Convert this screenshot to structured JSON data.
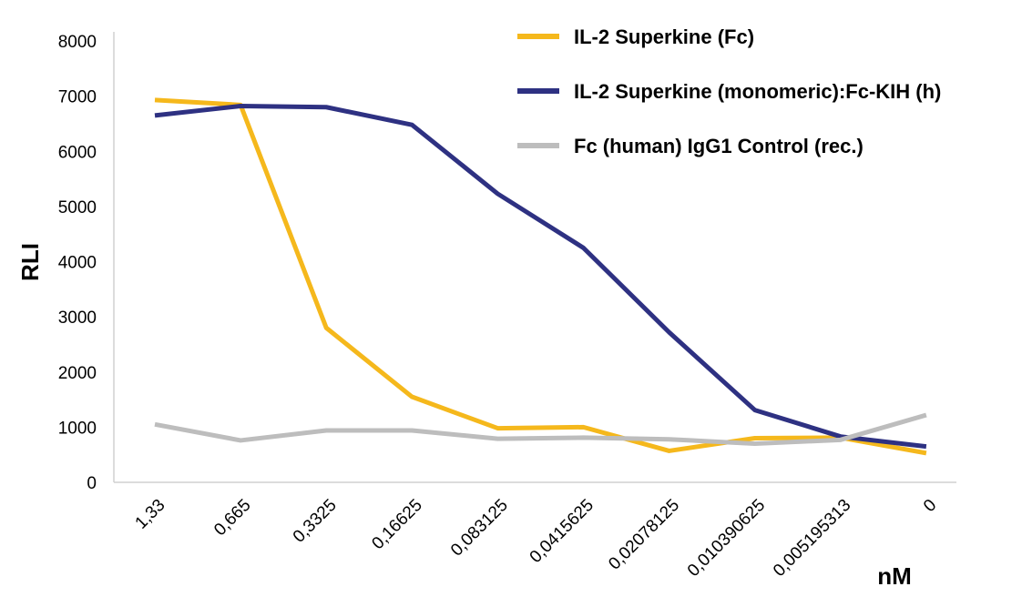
{
  "chart_data": {
    "type": "line",
    "categories": [
      "1,33",
      "0,665",
      "0,3325",
      "0,16625",
      "0,083125",
      "0,0415625",
      "0,02078125",
      "0,010390625",
      "0,005195313",
      "0"
    ],
    "series": [
      {
        "name": "IL-2 Superkine (Fc)",
        "color": "#F5B81C",
        "values": [
          6930,
          6840,
          2800,
          1550,
          980,
          1000,
          570,
          800,
          810,
          530
        ]
      },
      {
        "name": "IL-2 Superkine (monomeric):Fc-KIH (h)",
        "color": "#2E3182",
        "values": [
          6650,
          6820,
          6800,
          6480,
          5230,
          4250,
          2720,
          1310,
          830,
          650
        ]
      },
      {
        "name": "Fc (human) IgG1 Control (rec.)",
        "color": "#BDBDBD",
        "values": [
          1050,
          760,
          940,
          940,
          790,
          810,
          780,
          700,
          770,
          1220
        ]
      }
    ],
    "xlabel": "nM",
    "ylabel": "RLI",
    "ylim": [
      0,
      8000
    ],
    "yticks": [
      0,
      1000,
      2000,
      3000,
      4000,
      5000,
      6000,
      7000,
      8000
    ],
    "grid": false,
    "legend_position": "top-right"
  }
}
